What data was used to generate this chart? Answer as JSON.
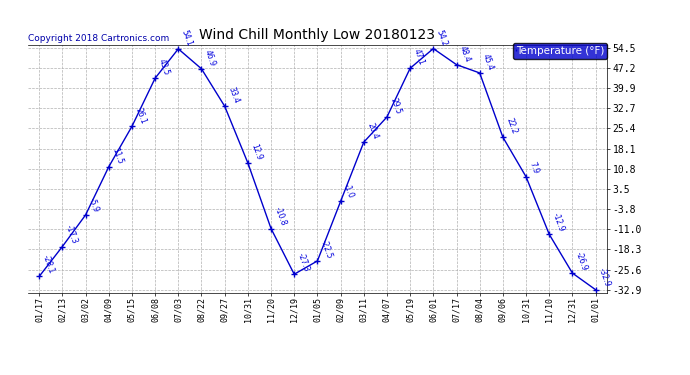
{
  "title": "Wind Chill Monthly Low 20180123",
  "copyright": "Copyright 2018 Cartronics.com",
  "legend_label": "Temperature (°F)",
  "x_labels": [
    "01/17",
    "02/13",
    "03/02",
    "04/09",
    "05/15",
    "06/08",
    "07/03",
    "08/22",
    "09/27",
    "10/31",
    "11/20",
    "12/19",
    "01/05",
    "02/09",
    "03/11",
    "04/07",
    "05/19",
    "06/01",
    "07/17",
    "08/04",
    "09/06",
    "10/31",
    "11/10",
    "12/31",
    "01/01"
  ],
  "y_values": [
    -28.1,
    -17.3,
    -5.9,
    11.5,
    26.1,
    43.5,
    54.1,
    46.9,
    33.4,
    12.9,
    -10.8,
    -27.3,
    -22.5,
    -1.0,
    20.4,
    29.5,
    47.1,
    54.2,
    48.4,
    45.4,
    22.2,
    7.9,
    -12.9,
    -26.9,
    -32.9
  ],
  "point_labels": [
    "-28.1",
    "-17.3",
    "-5.9",
    "11.5",
    "26.1",
    "43.5",
    "54.1",
    "46.9",
    "33.4",
    "12.9",
    "-10.8",
    "-27.3",
    "-22.5",
    "-1.0",
    "20.4",
    "29.5",
    "47.1",
    "54.2",
    "48.4",
    "45.4",
    "22.2",
    "7.9",
    "-12.9",
    "-26.9",
    "-32.9"
  ],
  "yticks": [
    54.5,
    47.2,
    39.9,
    32.7,
    25.4,
    18.1,
    10.8,
    3.5,
    -3.8,
    -11.0,
    -18.3,
    -25.6,
    -32.9
  ],
  "line_color": "#0000cc",
  "marker_color": "#0000cc",
  "bg_color": "#ffffff",
  "grid_color": "#b0b0b0",
  "label_color": "#0000dd",
  "legend_bg": "#0000cc",
  "legend_text_color": "#ffffff",
  "copyright_color": "#0000aa",
  "title_color": "#000000"
}
